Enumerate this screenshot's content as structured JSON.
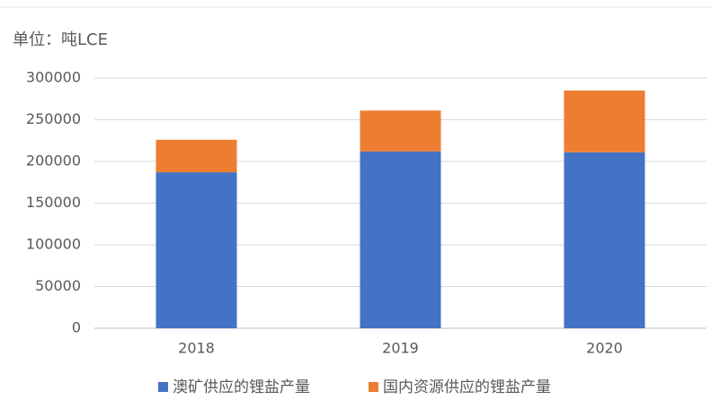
{
  "chart_data": {
    "type": "stacked-bar",
    "title": "单位：吨LCE",
    "categories": [
      "2018",
      "2019",
      "2020"
    ],
    "series": [
      {
        "name": "澳矿供应的锂盐产量",
        "color": "#4472c4",
        "values": [
          187000,
          212000,
          211000
        ]
      },
      {
        "name": "国内资源供应的锂盐产量",
        "color": "#ed7d31",
        "values": [
          39000,
          49000,
          74000
        ]
      }
    ],
    "ylim": [
      0,
      300000
    ],
    "yticks": [
      0,
      50000,
      100000,
      150000,
      200000,
      250000,
      300000
    ],
    "grid": true,
    "legend": "bottom"
  }
}
